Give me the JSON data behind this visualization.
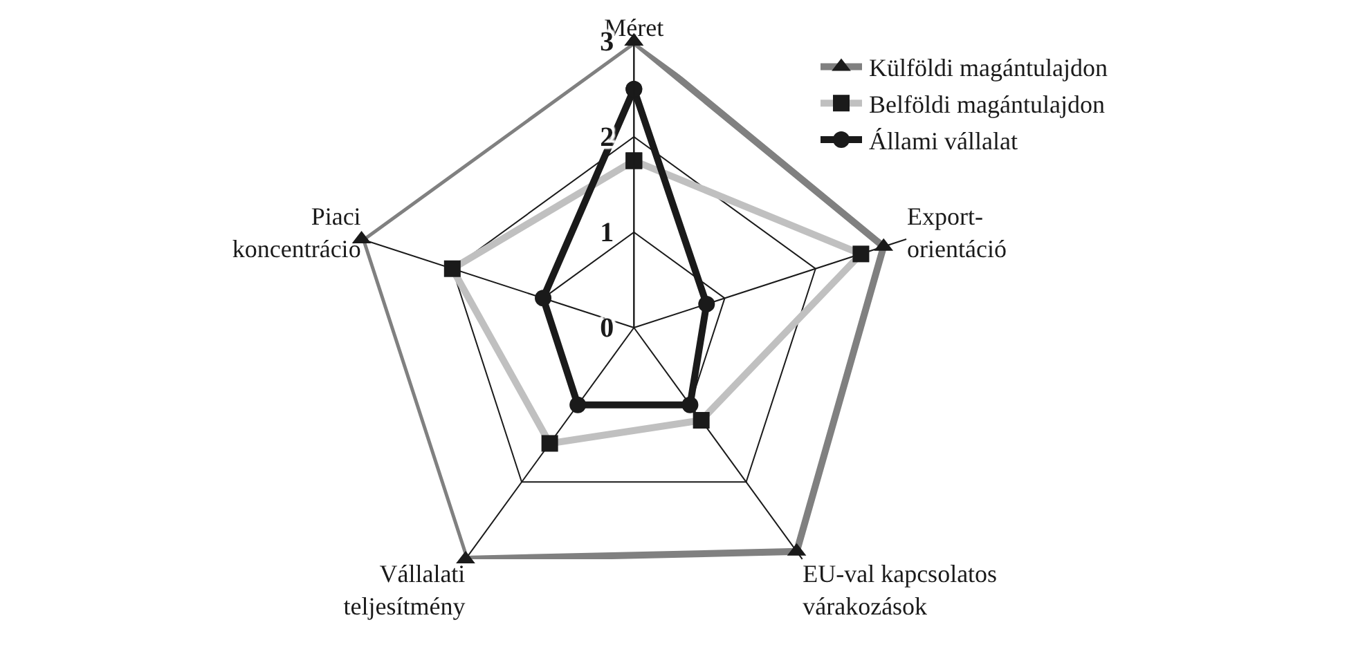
{
  "chart_data": {
    "type": "radar",
    "categories": [
      "Méret",
      "Export-\norientáció",
      "EU-val kapcsolatos\nvárakozások",
      "Vállalati\nteljesítmény",
      "Piaci\nkoncentráció"
    ],
    "series": [
      {
        "name": "Külföldi magántulajdon",
        "color": "#808080",
        "marker": "triangle",
        "values": [
          3,
          2.75,
          2.9,
          3,
          3
        ]
      },
      {
        "name": "Belföldi magántulajdon",
        "color": "#c0c0c0",
        "marker": "square",
        "values": [
          1.75,
          2.5,
          1.2,
          1.5,
          2
        ]
      },
      {
        "name": "Állami vállalat",
        "color": "#1a1a1a",
        "marker": "circle",
        "values": [
          2.5,
          0.8,
          1,
          1,
          1
        ]
      }
    ],
    "ylim": [
      0,
      3
    ],
    "yticks": [
      0,
      1,
      2,
      3
    ],
    "grid": true,
    "legend": "top right"
  }
}
